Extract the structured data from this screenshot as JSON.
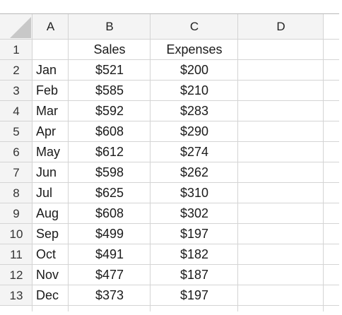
{
  "columns": [
    "A",
    "B",
    "C",
    "D"
  ],
  "rows": [
    {
      "num": "1",
      "A": "",
      "B": "Sales",
      "C": "Expenses"
    },
    {
      "num": "2",
      "A": "Jan",
      "B": "$521",
      "C": "$200"
    },
    {
      "num": "3",
      "A": "Feb",
      "B": "$585",
      "C": "$210"
    },
    {
      "num": "4",
      "A": "Mar",
      "B": "$592",
      "C": "$283"
    },
    {
      "num": "5",
      "A": "Apr",
      "B": "$608",
      "C": "$290"
    },
    {
      "num": "6",
      "A": "May",
      "B": "$612",
      "C": "$274"
    },
    {
      "num": "7",
      "A": "Jun",
      "B": "$598",
      "C": "$262"
    },
    {
      "num": "8",
      "A": "Jul",
      "B": "$625",
      "C": "$310"
    },
    {
      "num": "9",
      "A": "Aug",
      "B": "$608",
      "C": "$302"
    },
    {
      "num": "10",
      "A": "Sep",
      "B": "$499",
      "C": "$197"
    },
    {
      "num": "11",
      "A": "Oct",
      "B": "$491",
      "C": "$182"
    },
    {
      "num": "12",
      "A": "Nov",
      "B": "$477",
      "C": "$187"
    },
    {
      "num": "13",
      "A": "Dec",
      "B": "$373",
      "C": "$197"
    }
  ],
  "colors": {
    "header_bg": "#f4f4f4",
    "gridline": "#d4d4d4",
    "corner_triangle": "#c8c8c8"
  }
}
